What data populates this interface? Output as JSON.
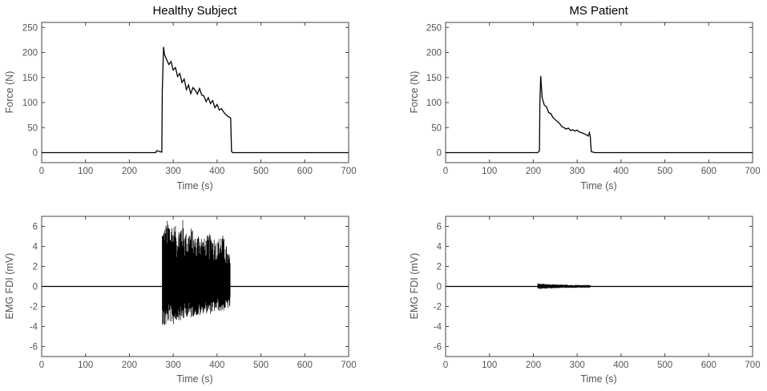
{
  "chart_data": [
    {
      "type": "line",
      "title": "Healthy Subject",
      "xlabel": "Time (s)",
      "ylabel": "Force (N)",
      "xlim": [
        0,
        700
      ],
      "ylim": [
        -20,
        260
      ],
      "xticks": [
        0,
        100,
        200,
        300,
        400,
        500,
        600,
        700
      ],
      "yticks": [
        0,
        50,
        100,
        150,
        200,
        250
      ],
      "grid": false,
      "series": [
        {
          "x": [
            0,
            260,
            262,
            266,
            270,
            274,
            275,
            278,
            280,
            285,
            290,
            295,
            300,
            305,
            310,
            315,
            320,
            325,
            330,
            335,
            340,
            345,
            350,
            355,
            360,
            365,
            370,
            375,
            380,
            385,
            390,
            395,
            400,
            405,
            410,
            415,
            420,
            425,
            430,
            431,
            433,
            436,
            440,
            450,
            700
          ],
          "y": [
            0,
            0,
            4,
            3,
            2,
            1,
            125,
            211,
            196,
            186,
            176,
            182,
            165,
            170,
            152,
            158,
            140,
            147,
            126,
            135,
            118,
            130,
            125,
            117,
            128,
            115,
            113,
            102,
            110,
            98,
            104,
            90,
            96,
            85,
            88,
            81,
            76,
            72,
            70,
            69,
            2,
            0,
            0,
            0,
            0
          ]
        }
      ]
    },
    {
      "type": "line",
      "title": "MS Patient",
      "xlabel": "Time (s)",
      "ylabel": "Force (N)",
      "xlim": [
        0,
        700
      ],
      "ylim": [
        -20,
        260
      ],
      "xticks": [
        0,
        100,
        200,
        300,
        400,
        500,
        600,
        700
      ],
      "yticks": [
        0,
        50,
        100,
        150,
        200,
        250
      ],
      "grid": false,
      "series": [
        {
          "x": [
            0,
            210,
            212,
            214,
            215,
            217,
            220,
            225,
            230,
            235,
            240,
            245,
            250,
            255,
            260,
            265,
            270,
            275,
            280,
            285,
            290,
            295,
            300,
            305,
            310,
            315,
            320,
            325,
            328,
            330,
            332,
            340,
            700
          ],
          "y": [
            0,
            0,
            2,
            4,
            100,
            153,
            110,
            95,
            92,
            80,
            78,
            70,
            66,
            62,
            58,
            52,
            50,
            47,
            49,
            44,
            46,
            43,
            45,
            41,
            40,
            38,
            36,
            33,
            40,
            30,
            2,
            0,
            0
          ]
        }
      ]
    },
    {
      "type": "line",
      "title": "",
      "xlabel": "Time (s)",
      "ylabel": "EMG FDI (mV)",
      "xlim": [
        0,
        700
      ],
      "ylim": [
        -7,
        7
      ],
      "xticks": [
        0,
        100,
        200,
        300,
        400,
        500,
        600,
        700
      ],
      "yticks": [
        -6,
        -4,
        -2,
        0,
        2,
        4,
        6
      ],
      "grid": false,
      "series": [
        {
          "burst_x": [
            275,
            280,
            290,
            300,
            310,
            320,
            330,
            340,
            350,
            360,
            370,
            380,
            390,
            400,
            410,
            420,
            430
          ],
          "burst_y_max": [
            6.2,
            6.0,
            7.0,
            6.3,
            5.8,
            7.0,
            5.4,
            6.1,
            5.0,
            5.7,
            4.8,
            5.2,
            5.4,
            4.5,
            5.6,
            4.3,
            3.0
          ],
          "burst_y_min": [
            -3.8,
            -4.3,
            -3.5,
            -3.9,
            -3.3,
            -3.6,
            -3.0,
            -3.2,
            -2.9,
            -3.1,
            -2.6,
            -2.8,
            -2.7,
            -2.4,
            -2.6,
            -2.3,
            -2.2
          ],
          "baseline": 0
        }
      ]
    },
    {
      "type": "line",
      "title": "",
      "xlabel": "Time (s)",
      "ylabel": "EMG FDI (mV)",
      "xlim": [
        0,
        700
      ],
      "ylim": [
        -7,
        7
      ],
      "xticks": [
        0,
        100,
        200,
        300,
        400,
        500,
        600,
        700
      ],
      "yticks": [
        -6,
        -4,
        -2,
        0,
        2,
        4,
        6
      ],
      "grid": false,
      "series": [
        {
          "burst_x": [
            210,
            220,
            230,
            240,
            250,
            260,
            270,
            280,
            290,
            300,
            310,
            320,
            330
          ],
          "burst_y_max": [
            0.35,
            0.3,
            0.25,
            0.22,
            0.2,
            0.2,
            0.18,
            0.18,
            0.17,
            0.17,
            0.16,
            0.16,
            0.15
          ],
          "burst_y_min": [
            -0.3,
            -0.25,
            -0.22,
            -0.2,
            -0.18,
            -0.18,
            -0.16,
            -0.16,
            -0.15,
            -0.15,
            -0.14,
            -0.14,
            -0.13
          ],
          "baseline": 0
        }
      ]
    }
  ]
}
